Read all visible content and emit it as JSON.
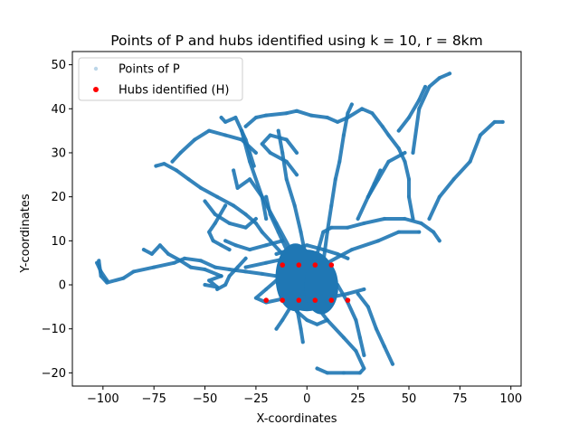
{
  "chart_data": {
    "type": "scatter",
    "title": "Points of P and hubs identified using k = 10, r = 8km",
    "xlabel": "X-coordinates",
    "ylabel": "Y-coordinates",
    "xlim": [
      -115,
      105
    ],
    "ylim": [
      -23,
      53
    ],
    "xticks": [
      -100,
      -75,
      -50,
      -25,
      0,
      25,
      50,
      75,
      100
    ],
    "yticks": [
      -20,
      -10,
      0,
      10,
      20,
      30,
      40,
      50
    ],
    "xtick_labels": [
      "−100",
      "−75",
      "−50",
      "−25",
      "0",
      "25",
      "50",
      "75",
      "100"
    ],
    "ytick_labels": [
      "−20",
      "−10",
      "0",
      "10",
      "20",
      "30",
      "40",
      "50"
    ],
    "grid": false,
    "legend_position": "upper-left",
    "series": [
      {
        "name": "Points of P",
        "color": "#1f77b4",
        "marker": "dense-point-cloud",
        "polylines": [
          [
            [
              -102,
              5.5
            ],
            [
              -101,
              2
            ],
            [
              -98,
              0.5
            ],
            [
              -90,
              1.5
            ],
            [
              -85,
              3
            ],
            [
              -75,
              4
            ],
            [
              -65,
              5
            ],
            [
              -60,
              6
            ],
            [
              -52,
              5.5
            ],
            [
              -45,
              4
            ],
            [
              -38,
              3.5
            ],
            [
              -30,
              3
            ],
            [
              -22,
              2.5
            ],
            [
              -15,
              2
            ],
            [
              -8,
              1.5
            ],
            [
              0,
              1
            ]
          ],
          [
            [
              -98,
              1
            ],
            [
              -101,
              3
            ],
            [
              -103,
              5
            ]
          ],
          [
            [
              -42,
              2
            ],
            [
              -50,
              3.5
            ],
            [
              -57,
              4
            ],
            [
              -62,
              5.5
            ],
            [
              -68,
              7
            ],
            [
              -72,
              9
            ],
            [
              -76,
              7
            ],
            [
              -80,
              8
            ]
          ],
          [
            [
              -42,
              2
            ],
            [
              -48,
              1
            ],
            [
              -44,
              -0.5
            ],
            [
              -50,
              0
            ]
          ],
          [
            [
              -8,
              1
            ],
            [
              -12,
              7
            ],
            [
              -18,
              10
            ],
            [
              -22,
              12
            ],
            [
              -25,
              14
            ],
            [
              -30,
              16
            ],
            [
              -36,
              18
            ],
            [
              -44,
              20
            ],
            [
              -52,
              22
            ],
            [
              -58,
              24
            ],
            [
              -64,
              26
            ],
            [
              -70,
              27.5
            ],
            [
              -74,
              27
            ]
          ],
          [
            [
              -25,
              15
            ],
            [
              -30,
              13
            ],
            [
              -38,
              14
            ],
            [
              -45,
              16
            ],
            [
              -50,
              19
            ]
          ],
          [
            [
              -20,
              15
            ],
            [
              -22,
              20
            ],
            [
              -28,
              24
            ],
            [
              -34,
              22
            ],
            [
              -36,
              26
            ]
          ],
          [
            [
              -40,
              18
            ],
            [
              -45,
              14
            ],
            [
              -48,
              12
            ],
            [
              -46,
              10
            ],
            [
              -42,
              9
            ],
            [
              -38,
              8
            ]
          ],
          [
            [
              -30,
              6
            ],
            [
              -34,
              4
            ],
            [
              -38,
              2
            ],
            [
              -40,
              0
            ],
            [
              -44,
              -1
            ]
          ],
          [
            [
              -8,
              8
            ],
            [
              -15,
              14
            ],
            [
              -22,
              20
            ],
            [
              -28,
              28
            ],
            [
              -32,
              35
            ],
            [
              -35,
              38
            ],
            [
              -40,
              37
            ],
            [
              -42,
              38
            ]
          ],
          [
            [
              -30,
              36
            ],
            [
              -25,
              38
            ],
            [
              -20,
              38.5
            ],
            [
              -10,
              39
            ],
            [
              -5,
              39.5
            ],
            [
              2,
              38.5
            ],
            [
              10,
              38
            ],
            [
              15,
              37
            ],
            [
              20,
              38
            ],
            [
              27,
              40
            ],
            [
              32,
              39
            ],
            [
              37,
              36
            ],
            [
              40,
              34
            ],
            [
              45,
              31
            ],
            [
              48,
              28
            ],
            [
              50,
              24
            ],
            [
              50,
              20
            ],
            [
              52,
              15
            ]
          ],
          [
            [
              -5,
              25
            ],
            [
              -10,
              28
            ],
            [
              -18,
              30
            ],
            [
              -22,
              32
            ],
            [
              -18,
              34
            ],
            [
              -10,
              33
            ],
            [
              -5,
              30
            ]
          ],
          [
            [
              -25,
              30
            ],
            [
              -32,
              33
            ],
            [
              -40,
              34
            ],
            [
              -48,
              35
            ],
            [
              -55,
              33
            ],
            [
              -62,
              30
            ],
            [
              -66,
              28
            ]
          ],
          [
            [
              0,
              5
            ],
            [
              -3,
              12
            ],
            [
              -6,
              18
            ],
            [
              -10,
              24
            ],
            [
              -12,
              30
            ],
            [
              -14,
              35
            ]
          ],
          [
            [
              8,
              5
            ],
            [
              10,
              12
            ],
            [
              12,
              18
            ],
            [
              14,
              24
            ],
            [
              16,
              28
            ],
            [
              18,
              34
            ],
            [
              20,
              39
            ],
            [
              22,
              41
            ]
          ],
          [
            [
              5,
              2
            ],
            [
              5,
              7
            ],
            [
              8,
              12
            ],
            [
              12,
              13
            ],
            [
              20,
              13
            ],
            [
              28,
              14
            ],
            [
              38,
              15
            ],
            [
              48,
              15
            ],
            [
              56,
              14
            ],
            [
              62,
              12
            ],
            [
              65,
              10
            ]
          ],
          [
            [
              0,
              2
            ],
            [
              10,
              5
            ],
            [
              22,
              8
            ],
            [
              35,
              10
            ],
            [
              45,
              12
            ],
            [
              55,
              12
            ]
          ],
          [
            [
              -5,
              -5
            ],
            [
              -3,
              -10
            ],
            [
              -2,
              -13
            ]
          ],
          [
            [
              5,
              -5
            ],
            [
              10,
              -8
            ],
            [
              18,
              -12
            ],
            [
              24,
              -15
            ],
            [
              28,
              -19
            ],
            [
              26,
              -20
            ],
            [
              18,
              -20
            ],
            [
              10,
              -20
            ],
            [
              5,
              -19
            ]
          ],
          [
            [
              15,
              0
            ],
            [
              20,
              -4
            ],
            [
              24,
              -8
            ],
            [
              26,
              -12
            ],
            [
              28,
              -16
            ]
          ],
          [
            [
              25,
              -2
            ],
            [
              30,
              -5
            ],
            [
              34,
              -10
            ],
            [
              38,
              -14
            ],
            [
              42,
              -18
            ]
          ],
          [
            [
              -8,
              -5
            ],
            [
              -12,
              -8
            ],
            [
              -15,
              -10
            ]
          ],
          [
            [
              25,
              15
            ],
            [
              30,
              20
            ],
            [
              35,
              24
            ],
            [
              40,
              28
            ],
            [
              48,
              30
            ]
          ],
          [
            [
              52,
              30
            ],
            [
              55,
              40
            ],
            [
              60,
              45
            ],
            [
              65,
              47
            ],
            [
              70,
              48
            ]
          ],
          [
            [
              60,
              15
            ],
            [
              65,
              20
            ],
            [
              72,
              24
            ],
            [
              80,
              28
            ],
            [
              85,
              34
            ],
            [
              92,
              37
            ],
            [
              96,
              37
            ]
          ],
          [
            [
              45,
              35
            ],
            [
              50,
              38
            ],
            [
              55,
              42
            ],
            [
              58,
              45
            ]
          ],
          [
            [
              -32,
              35
            ],
            [
              -30,
              33
            ],
            [
              -28,
              30
            ],
            [
              -26,
              27
            ]
          ],
          [
            [
              -2,
              4
            ],
            [
              -10,
              6
            ],
            [
              -20,
              5
            ],
            [
              -30,
              4
            ]
          ],
          [
            [
              -15,
              1
            ],
            [
              -20,
              -1
            ],
            [
              -25,
              -3
            ],
            [
              -20,
              -4
            ],
            [
              -10,
              -3
            ],
            [
              0,
              -2
            ],
            [
              10,
              -3
            ],
            [
              20,
              -2
            ],
            [
              28,
              -1
            ]
          ],
          [
            [
              -15,
              7
            ],
            [
              -8,
              8
            ],
            [
              0,
              9
            ],
            [
              8,
              8
            ],
            [
              15,
              7
            ],
            [
              20,
              6
            ]
          ],
          [
            [
              -40,
              10
            ],
            [
              -35,
              9
            ],
            [
              -28,
              8
            ],
            [
              -20,
              9
            ],
            [
              -12,
              10
            ]
          ],
          [
            [
              -20,
              20
            ],
            [
              -18,
              16
            ],
            [
              -14,
              12
            ],
            [
              -10,
              8
            ]
          ],
          [
            [
              30,
              20
            ],
            [
              33,
              23
            ],
            [
              36,
              26
            ]
          ],
          [
            [
              -10,
              -2
            ],
            [
              -5,
              -6
            ],
            [
              0,
              -8
            ],
            [
              5,
              -9
            ],
            [
              10,
              -8
            ]
          ],
          [
            [
              -5,
              0
            ],
            [
              -2,
              5
            ],
            [
              2,
              6
            ],
            [
              6,
              4
            ],
            [
              8,
              0
            ],
            [
              5,
              -4
            ],
            [
              0,
              -5
            ],
            [
              -4,
              -3
            ]
          ]
        ],
        "hotspot": {
          "x": 0,
          "y": 1,
          "rx": 14,
          "ry": 7
        }
      },
      {
        "name": "Hubs identified (H)",
        "color": "#ff0000",
        "points": [
          [
            -12,
            4.5
          ],
          [
            -4,
            4.5
          ],
          [
            4,
            4.5
          ],
          [
            12,
            4.5
          ],
          [
            -20,
            -3.5
          ],
          [
            -12,
            -3.5
          ],
          [
            -4,
            -3.5
          ],
          [
            4,
            -3.5
          ],
          [
            12,
            -3.5
          ],
          [
            20,
            -3.5
          ]
        ]
      }
    ]
  }
}
